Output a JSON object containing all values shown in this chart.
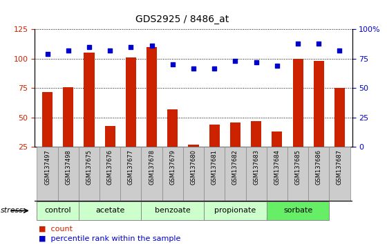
{
  "title": "GDS2925 / 8486_at",
  "samples": [
    "GSM137497",
    "GSM137498",
    "GSM137675",
    "GSM137676",
    "GSM137677",
    "GSM137678",
    "GSM137679",
    "GSM137680",
    "GSM137681",
    "GSM137682",
    "GSM137683",
    "GSM137684",
    "GSM137685",
    "GSM137686",
    "GSM137687"
  ],
  "counts": [
    72,
    76,
    105,
    43,
    101,
    110,
    57,
    27,
    44,
    46,
    47,
    38,
    100,
    98,
    75
  ],
  "percentiles": [
    79,
    82,
    85,
    82,
    85,
    86,
    70,
    67,
    67,
    73,
    72,
    69,
    88,
    88,
    82
  ],
  "groups": [
    {
      "label": "control",
      "start": 0,
      "end": 1
    },
    {
      "label": "acetate",
      "start": 2,
      "end": 4
    },
    {
      "label": "benzoate",
      "start": 5,
      "end": 7
    },
    {
      "label": "propionate",
      "start": 8,
      "end": 10
    },
    {
      "label": "sorbate",
      "start": 11,
      "end": 13
    }
  ],
  "group_colors": [
    "#ccffcc",
    "#ccffcc",
    "#ccffcc",
    "#ccffcc",
    "#66ee66"
  ],
  "ylim_left": [
    25,
    125
  ],
  "ylim_right": [
    0,
    100
  ],
  "yticks_left": [
    25,
    50,
    75,
    100,
    125
  ],
  "yticks_right": [
    0,
    25,
    50,
    75,
    100
  ],
  "ytick_labels_right": [
    "0",
    "25",
    "50",
    "75",
    "100%"
  ],
  "bar_color": "#cc2200",
  "dot_color": "#0000cc",
  "bar_width": 0.5,
  "tick_bg_color": "#cccccc",
  "group_border_color": "#888888"
}
